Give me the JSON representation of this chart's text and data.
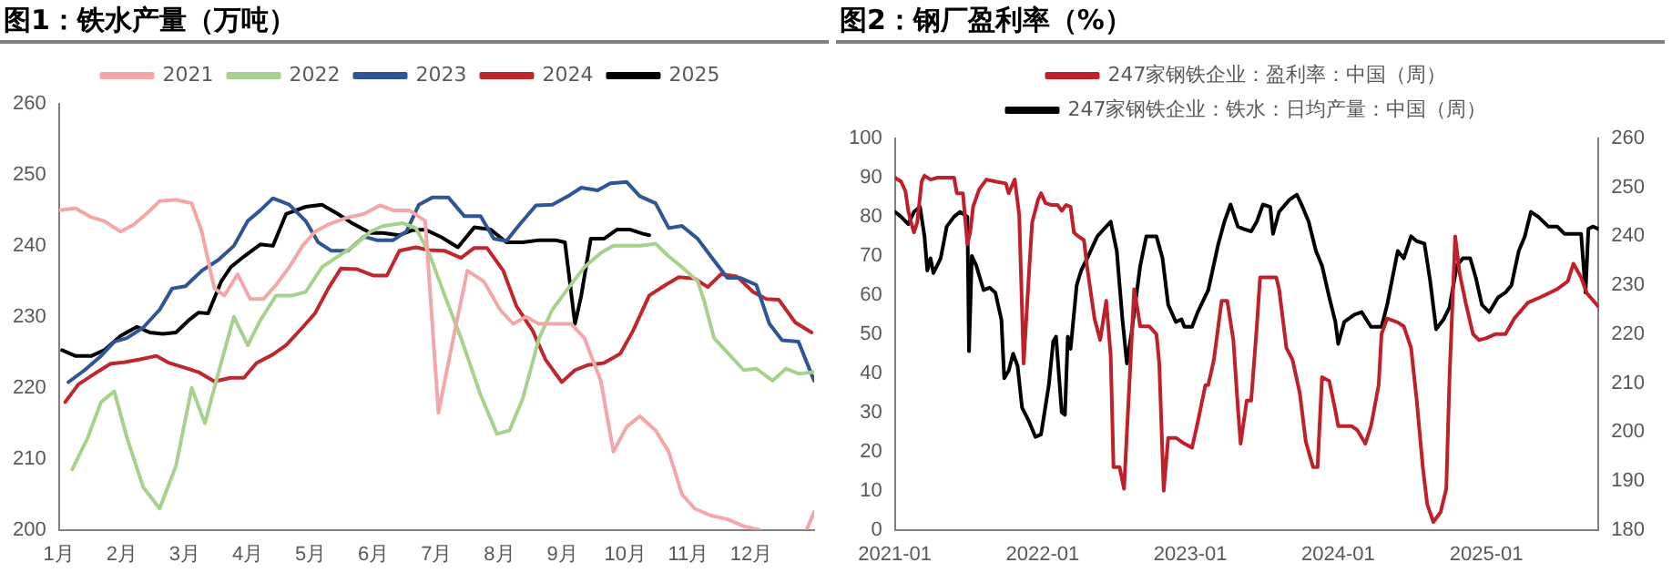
{
  "chart_data": [
    {
      "type": "line",
      "title": "图1：铁水产量（万吨）",
      "legend": "top",
      "grid": false,
      "xlim": [
        1,
        13
      ],
      "xticks": [
        {
          "value": 1,
          "label": "1月"
        },
        {
          "value": 2,
          "label": "2月"
        },
        {
          "value": 3,
          "label": "3月"
        },
        {
          "value": 4,
          "label": "4月"
        },
        {
          "value": 5,
          "label": "5月"
        },
        {
          "value": 6,
          "label": "6月"
        },
        {
          "value": 7,
          "label": "7月"
        },
        {
          "value": 8,
          "label": "8月"
        },
        {
          "value": 9,
          "label": "9月"
        },
        {
          "value": 10,
          "label": "10月"
        },
        {
          "value": 11,
          "label": "11月"
        },
        {
          "value": 12,
          "label": "12月"
        }
      ],
      "ylim": [
        200,
        260
      ],
      "yticks": [
        200,
        210,
        220,
        230,
        240,
        250,
        260
      ],
      "series": [
        {
          "name": "2021",
          "color": "#f4a7a9",
          "x": [
            1.0,
            1.26,
            1.52,
            1.72,
            1.98,
            2.19,
            2.39,
            2.6,
            2.86,
            3.11,
            3.27,
            3.47,
            3.63,
            3.84,
            4.04,
            4.25,
            4.45,
            4.66,
            4.87,
            5.07,
            5.28,
            5.59,
            5.85,
            6.1,
            6.31,
            6.57,
            6.82,
            7.03,
            7.29,
            7.49,
            7.75,
            8.01,
            8.22,
            8.42,
            8.63,
            8.89,
            9.14,
            9.35,
            9.61,
            9.81,
            10.02,
            10.23,
            10.48,
            10.69,
            10.9,
            11.1,
            11.36,
            11.62,
            11.88,
            12.13,
            12.5,
            12.88,
            13.0
          ],
          "values": [
            245,
            245.3,
            244,
            243.5,
            242,
            243,
            244.5,
            246.3,
            246.5,
            246,
            242,
            234,
            233,
            236,
            232.5,
            232.5,
            234.5,
            237,
            240,
            242,
            243,
            244,
            244.5,
            245.7,
            245,
            245,
            243.5,
            216.5,
            228,
            236.5,
            235,
            231,
            229,
            230,
            229,
            229,
            229,
            227,
            221,
            211,
            214.5,
            216,
            214,
            211,
            205,
            203,
            202,
            201.5,
            200.5,
            200,
            null,
            200,
            202.5
          ]
        },
        {
          "name": "2022",
          "color": "#a9d18e",
          "x": [
            1.21,
            1.46,
            1.67,
            1.88,
            2.08,
            2.34,
            2.6,
            2.86,
            3.11,
            3.32,
            3.53,
            3.78,
            4.0,
            4.2,
            4.45,
            4.71,
            4.92,
            5.18,
            5.43,
            5.69,
            5.95,
            6.15,
            6.46,
            6.67,
            6.88,
            7.13,
            7.39,
            7.7,
            7.96,
            8.16,
            8.37,
            8.63,
            8.84,
            9.09,
            9.35,
            9.61,
            9.81,
            10.02,
            10.23,
            10.48,
            10.69,
            10.9,
            11.15,
            11.26,
            11.41,
            11.62,
            11.88,
            12.08,
            12.34,
            12.55,
            12.75,
            13.0
          ],
          "values": [
            208.5,
            213,
            218,
            219.5,
            213,
            206,
            203,
            209,
            220,
            215,
            222,
            230,
            226,
            229.5,
            233,
            233,
            233.5,
            237,
            238.5,
            240,
            242,
            242.8,
            243.2,
            242.5,
            239,
            233,
            227,
            219,
            213.5,
            214,
            218.5,
            227,
            231,
            234,
            237,
            239,
            240,
            240,
            240,
            240.3,
            238.5,
            237,
            235,
            232,
            227,
            225,
            222.5,
            222.7,
            221,
            222.7,
            222,
            222.2
          ]
        },
        {
          "name": "2023",
          "color": "#2f5597",
          "x": [
            1.15,
            1.41,
            1.67,
            1.88,
            2.08,
            2.34,
            2.6,
            2.8,
            3.01,
            3.27,
            3.53,
            3.78,
            4.0,
            4.2,
            4.4,
            4.66,
            4.92,
            5.12,
            5.33,
            5.59,
            5.85,
            6.05,
            6.31,
            6.52,
            6.72,
            6.93,
            7.19,
            7.44,
            7.7,
            7.91,
            8.11,
            8.32,
            8.58,
            8.84,
            9.09,
            9.3,
            9.56,
            9.76,
            10.02,
            10.23,
            10.48,
            10.69,
            10.9,
            11.15,
            11.36,
            11.62,
            11.82,
            12.08,
            12.29,
            12.49,
            12.75,
            13.0
          ],
          "values": [
            220.8,
            222.5,
            224.5,
            226.5,
            227,
            228.5,
            231,
            234,
            234.3,
            236.5,
            238,
            240,
            243.5,
            245,
            246.7,
            245.8,
            243.5,
            240.5,
            239.3,
            239.3,
            241.3,
            240.8,
            240.8,
            242,
            245.8,
            246.8,
            246.8,
            244.2,
            244.2,
            241,
            240.7,
            243,
            245.7,
            245.8,
            247,
            248.2,
            247.8,
            248.8,
            249,
            247,
            246,
            242.5,
            242.8,
            241,
            238.5,
            235.5,
            235.5,
            234.5,
            229,
            226.7,
            226.5,
            221
          ]
        },
        {
          "name": "2024",
          "color": "#c0272d",
          "x": [
            1.1,
            1.31,
            1.57,
            1.82,
            2.03,
            2.29,
            2.55,
            2.75,
            3.01,
            3.22,
            3.47,
            3.73,
            3.94,
            4.14,
            4.4,
            4.61,
            4.87,
            5.07,
            5.28,
            5.48,
            5.74,
            6.0,
            6.21,
            6.41,
            6.67,
            6.88,
            7.13,
            7.39,
            7.6,
            7.8,
            8.06,
            8.27,
            8.53,
            8.73,
            8.99,
            9.2,
            9.4,
            9.66,
            9.92,
            10.12,
            10.38,
            10.64,
            10.85,
            11.1,
            11.31,
            11.52,
            11.77,
            12.03,
            12.24,
            12.44,
            12.7,
            12.96
          ],
          "values": [
            218,
            220.5,
            222,
            223.4,
            223.6,
            224,
            224.5,
            223.5,
            222.8,
            222.2,
            220.9,
            221.4,
            221.4,
            223.5,
            224.7,
            226,
            228.5,
            230.5,
            234,
            236.8,
            236.7,
            235.8,
            235.8,
            239.3,
            239.8,
            239.4,
            239.3,
            238.3,
            239.7,
            239.7,
            236.5,
            231.5,
            228,
            224,
            220.8,
            222.5,
            223.2,
            223.5,
            224.8,
            228,
            233,
            234.5,
            235.6,
            235.4,
            234.2,
            236,
            235.7,
            233.5,
            232.5,
            232.4,
            229.2,
            227.8
          ]
        },
        {
          "name": "2025",
          "color": "#000000",
          "x": [
            1.05,
            1.26,
            1.52,
            1.72,
            1.98,
            2.24,
            2.44,
            2.65,
            2.86,
            3.06,
            3.22,
            3.37,
            3.58,
            3.73,
            3.94,
            4.2,
            4.4,
            4.61,
            4.92,
            5.18,
            5.43,
            5.64,
            5.95,
            6.15,
            6.41,
            6.62,
            6.82,
            7.08,
            7.34,
            7.6,
            7.86,
            8.11,
            8.37,
            8.63,
            8.89,
            9.04,
            9.2,
            9.3,
            9.45,
            9.66,
            9.87,
            10.07,
            10.28,
            10.38
          ],
          "values": [
            225.3,
            224.5,
            224.5,
            225.3,
            227.3,
            228.6,
            227.8,
            227.6,
            227.8,
            229.5,
            230.6,
            230.5,
            235,
            237,
            238.5,
            240.2,
            240,
            244.5,
            245.5,
            245.8,
            244.5,
            243.3,
            241.8,
            241.8,
            241.5,
            242.2,
            242.3,
            241.2,
            239.8,
            242.6,
            242.3,
            240.5,
            240.5,
            240.8,
            240.8,
            240.5,
            229,
            233,
            241,
            241,
            242.3,
            242.3,
            241.7,
            241.5
          ]
        }
      ]
    },
    {
      "type": "line",
      "title": "图2：钢厂盈利率（%）",
      "legend": "top",
      "grid": false,
      "xlim": [
        "2021-01-01",
        "2025-10-05"
      ],
      "xticks": [
        "2021-01",
        "2022-01",
        "2023-01",
        "2024-01",
        "2025-01"
      ],
      "ylim": [
        0,
        100
      ],
      "yticks": [
        0,
        10,
        20,
        30,
        40,
        50,
        60,
        70,
        80,
        90,
        100
      ],
      "y2lim": [
        180,
        260
      ],
      "y2ticks": [
        180,
        190,
        200,
        210,
        220,
        230,
        240,
        250,
        260
      ],
      "series": [
        {
          "name": "247家钢铁企业：盈利率：中国（周）",
          "color": "#c0202a",
          "x": [
            "2021-01-01",
            "2021-01-16",
            "2021-01-27",
            "2021-02-03",
            "2021-02-10",
            "2021-02-17",
            "2021-02-25",
            "2021-03-08",
            "2021-03-15",
            "2021-03-30",
            "2021-04-17",
            "2021-05-27",
            "2021-06-03",
            "2021-06-18",
            "2021-06-29",
            "2021-07-06",
            "2021-07-13",
            "2021-07-28",
            "2021-08-15",
            "2021-09-06",
            "2021-10-02",
            "2021-10-09",
            "2021-10-24",
            "2021-11-04",
            "2021-11-15",
            "2021-11-29",
            "2021-12-06",
            "2021-12-21",
            "2021-12-28",
            "2022-01-08",
            "2022-01-23",
            "2022-02-07",
            "2022-02-17",
            "2022-02-28",
            "2022-03-11",
            "2022-03-19",
            "2022-03-30",
            "2022-04-13",
            "2022-04-21",
            "2022-05-09",
            "2022-05-23",
            "2022-06-07",
            "2022-06-18",
            "2022-06-25",
            "2022-07-10",
            "2022-07-21",
            "2022-08-04",
            "2022-08-15",
            "2022-08-30",
            "2022-09-06",
            "2022-09-21",
            "2022-10-09",
            "2022-10-16",
            "2022-10-27",
            "2022-11-07",
            "2022-11-26",
            "2022-12-17",
            "2023-01-05",
            "2023-01-19",
            "2023-02-07",
            "2023-02-14",
            "2023-02-28",
            "2023-03-19",
            "2023-04-02",
            "2023-04-17",
            "2023-04-28",
            "2023-05-05",
            "2023-05-20",
            "2023-05-31",
            "2023-06-14",
            "2023-06-22",
            "2023-08-01",
            "2023-08-08",
            "2023-08-26",
            "2023-09-10",
            "2023-09-28",
            "2023-10-13",
            "2023-10-31",
            "2023-11-11",
            "2023-11-22",
            "2023-12-10",
            "2023-12-25",
            "2024-01-01",
            "2024-02-03",
            "2024-02-17",
            "2024-03-08",
            "2024-03-22",
            "2024-04-10",
            "2024-04-17",
            "2024-05-01",
            "2024-05-27",
            "2024-06-11",
            "2024-06-29",
            "2024-07-13",
            "2024-07-28",
            "2024-08-08",
            "2024-08-23",
            "2024-09-10",
            "2024-09-24",
            "2024-10-02",
            "2024-10-16",
            "2024-10-27",
            "2024-11-11",
            "2024-11-29",
            "2024-12-14",
            "2025-01-01",
            "2025-01-23",
            "2025-02-17",
            "2025-03-11",
            "2025-04-13",
            "2025-05-16",
            "2025-06-25",
            "2025-07-21",
            "2025-08-04",
            "2025-08-23",
            "2025-09-06",
            "2025-10-05"
          ],
          "values": [
            90,
            89,
            86.5,
            81.5,
            78.5,
            76,
            78.5,
            89,
            90.5,
            89.5,
            90,
            90,
            86,
            86,
            73,
            76,
            82.5,
            87,
            89.5,
            89,
            88.5,
            86,
            89.5,
            80.5,
            42.5,
            67,
            78.5,
            84.5,
            86,
            83.5,
            83,
            83,
            81.5,
            83,
            82.5,
            76,
            75,
            74,
            67,
            54,
            48.5,
            58.5,
            44.5,
            16,
            16,
            10.5,
            39,
            61.5,
            52,
            52,
            52,
            50,
            42.5,
            10,
            23.5,
            23.5,
            22,
            21,
            27.5,
            37,
            37,
            43.5,
            58.5,
            58.5,
            48.5,
            31.5,
            22,
            33,
            33,
            52,
            64.5,
            64.5,
            61.5,
            46.5,
            43.5,
            35,
            22.5,
            16,
            16,
            39,
            38,
            30.5,
            26.5,
            26.5,
            25.5,
            22,
            26.5,
            37,
            50,
            54,
            53,
            52,
            46.5,
            33,
            16,
            6.5,
            2,
            4.5,
            10.5,
            39,
            75,
            65.5,
            58,
            50,
            48.5,
            49,
            50,
            50,
            54,
            58,
            59.5,
            61.5,
            63.5,
            68,
            64.5,
            60.5,
            57
          ]
        },
        {
          "name": "247家钢铁企业：铁水：日均产量：中国（周）",
          "color": "#000000",
          "axis": "y2",
          "x": [
            "2021-01-01",
            "2021-01-16",
            "2021-02-03",
            "2021-02-17",
            "2021-03-04",
            "2021-03-15",
            "2021-03-22",
            "2021-03-30",
            "2021-04-06",
            "2021-04-24",
            "2021-05-09",
            "2021-05-27",
            "2021-06-11",
            "2021-06-29",
            "2021-07-03",
            "2021-07-10",
            "2021-07-21",
            "2021-08-08",
            "2021-08-23",
            "2021-09-06",
            "2021-09-21",
            "2021-09-28",
            "2021-10-09",
            "2021-10-20",
            "2021-10-31",
            "2021-11-11",
            "2021-11-29",
            "2021-12-14",
            "2021-12-28",
            "2022-01-16",
            "2022-01-27",
            "2022-02-03",
            "2022-02-17",
            "2022-02-25",
            "2022-03-04",
            "2022-03-11",
            "2022-03-26",
            "2022-04-06",
            "2022-04-21",
            "2022-05-16",
            "2022-06-18",
            "2022-07-03",
            "2022-07-17",
            "2022-07-28",
            "2022-08-08",
            "2022-08-30",
            "2022-09-14",
            "2022-10-09",
            "2022-10-24",
            "2022-11-07",
            "2022-11-26",
            "2022-12-10",
            "2022-12-17",
            "2023-01-05",
            "2023-01-19",
            "2023-02-14",
            "2023-03-11",
            "2023-03-26",
            "2023-04-10",
            "2023-04-28",
            "2023-05-12",
            "2023-05-31",
            "2023-06-14",
            "2023-06-29",
            "2023-07-17",
            "2023-07-24",
            "2023-08-08",
            "2023-09-03",
            "2023-09-21",
            "2023-10-05",
            "2023-10-20",
            "2023-11-07",
            "2023-11-22",
            "2023-12-10",
            "2023-12-25",
            "2024-01-01",
            "2024-01-16",
            "2024-02-10",
            "2024-02-28",
            "2024-03-22",
            "2024-04-17",
            "2024-05-01",
            "2024-05-27",
            "2024-06-11",
            "2024-06-29",
            "2024-07-13",
            "2024-08-01",
            "2024-08-15",
            "2024-08-30",
            "2024-09-17",
            "2024-10-02",
            "2024-10-20",
            "2024-11-04",
            "2024-11-22",
            "2024-12-06",
            "2024-12-21",
            "2025-01-08",
            "2025-01-30",
            "2025-02-17",
            "2025-03-04",
            "2025-03-22",
            "2025-04-06",
            "2025-04-21",
            "2025-05-09",
            "2025-06-03",
            "2025-06-25",
            "2025-07-13",
            "2025-07-28",
            "2025-08-12",
            "2025-08-23",
            "2025-09-03",
            "2025-09-10",
            "2025-09-21",
            "2025-10-05"
          ],
          "values": [
            245,
            244,
            242.5,
            245,
            246,
            240,
            233,
            235.5,
            232.5,
            235.5,
            242,
            244,
            245,
            244,
            216.5,
            236,
            234,
            229,
            229.5,
            228.5,
            223,
            211,
            212.5,
            216,
            213.5,
            205,
            202,
            199,
            199.5,
            209.5,
            218.5,
            219.5,
            204,
            203.5,
            219.5,
            217,
            230,
            233,
            235.5,
            240,
            243,
            237,
            223,
            214,
            220,
            234,
            240,
            240,
            235.5,
            226,
            222.5,
            223,
            221.5,
            221.5,
            224.5,
            229,
            238.5,
            243,
            246.5,
            242,
            241.5,
            241,
            243,
            246.5,
            246,
            240.5,
            245,
            247.5,
            248.5,
            246,
            243,
            237,
            234,
            227.5,
            222.5,
            218,
            222.5,
            224,
            224.5,
            221.5,
            221.5,
            226,
            237,
            235.5,
            240,
            239,
            238.5,
            231,
            221,
            223,
            225.5,
            234,
            235.5,
            235.5,
            231.5,
            226,
            224.5,
            227.5,
            228.5,
            230,
            237,
            240,
            245,
            244,
            242,
            242,
            240.5,
            240.5,
            240.5,
            240.5,
            228.5,
            241.5,
            242,
            241.5
          ]
        }
      ]
    }
  ]
}
